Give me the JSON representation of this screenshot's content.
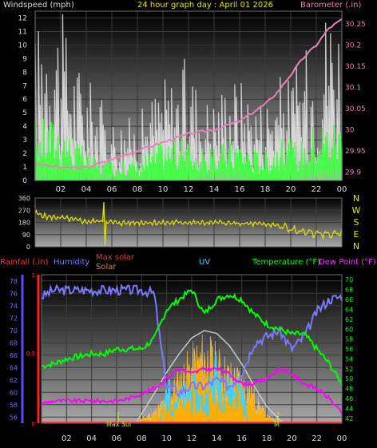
{
  "header": {
    "left": "Windspeed (mph)",
    "center": "24 hour graph day : April 01 2026",
    "right": "Barometer (.in)"
  },
  "colors": {
    "wind_avg": "#3cff3c",
    "wind_gust": "#dcdcdc",
    "barometer": "#e882b8",
    "direction": "#e0e000",
    "rain": "#ff3030",
    "humidity": "#7a7aff",
    "uv": "#40d0ff",
    "temperature": "#00ff00",
    "dewpoint": "#ff00ff",
    "solar": "#ffb000",
    "max_solar": "#d0d0d0",
    "axis_text_blue": "#6f6fff",
    "axis_text_green": "#00ff00"
  },
  "chart_data": [
    {
      "id": "wind-baro",
      "type": "line",
      "ylabel_left": "Windspeed (mph)",
      "ylabel_right": "Barometer (.in)",
      "x_ticks": [
        "02",
        "04",
        "06",
        "08",
        "10",
        "12",
        "14",
        "16",
        "18",
        "20",
        "22",
        "00"
      ],
      "y_left_ticks": [
        "0",
        "1",
        "2",
        "3",
        "4",
        "5",
        "6",
        "7",
        "8",
        "9",
        "10",
        "11",
        "12"
      ],
      "y_right_ticks": [
        "29.9",
        "29.95",
        "30",
        "30.05",
        "30.1",
        "30.15",
        "30.2",
        "30.25"
      ],
      "ylim_left": [
        0,
        12.5
      ],
      "ylim_right": [
        29.88,
        30.28
      ],
      "series": [
        {
          "name": "gust",
          "color": "#dcdcdc",
          "x": [
            0,
            1,
            2,
            3,
            4,
            5,
            6,
            7,
            8,
            9,
            10,
            11,
            12,
            13,
            14,
            15,
            16,
            17,
            18,
            19,
            20,
            21,
            22,
            23,
            24
          ],
          "y": [
            7,
            9,
            8,
            6,
            5,
            4,
            3,
            3,
            3,
            4,
            5,
            5,
            6,
            4,
            4,
            5,
            5,
            4,
            4,
            5,
            5,
            6,
            7,
            9,
            8
          ]
        },
        {
          "name": "average",
          "color": "#3cff3c",
          "x": [
            0,
            1,
            2,
            3,
            4,
            5,
            6,
            7,
            8,
            9,
            10,
            11,
            12,
            13,
            14,
            15,
            16,
            17,
            18,
            19,
            20,
            21,
            22,
            23,
            24
          ],
          "y": [
            3,
            3,
            3,
            2,
            1.5,
            1,
            1,
            1,
            1,
            1.5,
            2,
            2,
            2,
            1.5,
            1.5,
            2,
            2,
            1.5,
            1.5,
            2,
            2,
            2,
            3,
            3,
            3
          ]
        },
        {
          "name": "barometer",
          "color": "#e882b8",
          "x": [
            0,
            2,
            4,
            6,
            8,
            10,
            12,
            14,
            16,
            18,
            19,
            20,
            21,
            22,
            23,
            24
          ],
          "y": [
            29.92,
            29.91,
            29.91,
            29.93,
            29.95,
            29.97,
            29.99,
            30.0,
            30.02,
            30.06,
            30.09,
            30.13,
            30.17,
            30.2,
            30.24,
            30.26
          ]
        }
      ]
    },
    {
      "id": "wind-direction",
      "type": "line",
      "x_ticks": [
        "02",
        "04",
        "06",
        "08",
        "10",
        "12",
        "14",
        "16",
        "18",
        "20",
        "22",
        "00"
      ],
      "y_ticks": [
        "0",
        "90",
        "180",
        "270",
        "360"
      ],
      "compass": [
        "N",
        "W",
        "S",
        "E",
        "N"
      ],
      "ylim": [
        0,
        360
      ],
      "series": [
        {
          "name": "direction",
          "color": "#e0e000",
          "x": [
            0,
            1,
            2,
            3,
            4,
            5,
            6,
            7,
            8,
            9,
            10,
            11,
            12,
            13,
            14,
            15,
            16,
            17,
            18,
            19,
            20,
            21,
            22,
            23,
            24
          ],
          "y": [
            250,
            220,
            215,
            200,
            185,
            190,
            180,
            175,
            180,
            180,
            175,
            180,
            180,
            175,
            180,
            175,
            170,
            170,
            165,
            160,
            125,
            110,
            100,
            90,
            105
          ]
        }
      ]
    },
    {
      "id": "temp-humidity",
      "type": "line",
      "legend_left": [
        "Rainfall (.in)",
        "Humidity"
      ],
      "legend_mid": [
        "Max solar",
        "Solar"
      ],
      "legend_center": "UV",
      "legend_right": [
        "Temperature (°F)",
        "Dew Point (°F)"
      ],
      "x_ticks": [
        "02",
        "04",
        "06",
        "08",
        "10",
        "12",
        "14",
        "16",
        "18",
        "20",
        "22",
        "00"
      ],
      "humidity_ticks": [
        "56",
        "58",
        "60",
        "62",
        "64",
        "66",
        "68",
        "70",
        "72",
        "74",
        "76",
        "78"
      ],
      "temp_ticks": [
        "42",
        "44",
        "46",
        "48",
        "50",
        "52",
        "54",
        "56",
        "58",
        "60",
        "62",
        "64",
        "66",
        "68",
        "70"
      ],
      "rain_ticks": [
        "0",
        "0.5",
        "1"
      ],
      "ylim_humidity": [
        55,
        79
      ],
      "ylim_temp": [
        41,
        71
      ],
      "bottom_annotations": [
        "Max Sol",
        "M"
      ],
      "series": [
        {
          "name": "Humidity",
          "color": "#7a7aff",
          "x": [
            0,
            1,
            2,
            3,
            4,
            5,
            6,
            7,
            8,
            9,
            9.5,
            10,
            11,
            12,
            13,
            14,
            15,
            16,
            17,
            18,
            19,
            20,
            21,
            22,
            23,
            24
          ],
          "y": [
            75.5,
            76.5,
            76.5,
            76.5,
            76.5,
            76.5,
            76.5,
            76.5,
            76.5,
            76,
            68,
            61,
            60,
            61,
            61,
            62,
            61,
            63,
            68,
            69,
            70,
            67,
            69,
            73,
            75,
            75.5
          ]
        },
        {
          "name": "Temperature (°F)",
          "color": "#00ff00",
          "x": [
            0,
            1,
            2,
            3,
            4,
            5,
            6,
            7,
            8,
            9,
            10,
            11,
            12,
            13,
            14,
            15,
            16,
            17,
            18,
            19,
            20,
            21,
            22,
            23,
            24
          ],
          "y": [
            52.5,
            53,
            54,
            54.5,
            55,
            55,
            56,
            56,
            56,
            58,
            64,
            66,
            68,
            63,
            66,
            67,
            66,
            63,
            61,
            60,
            59,
            59,
            56,
            53,
            49
          ]
        },
        {
          "name": "Dew Point (°F)",
          "color": "#ff00ff",
          "x": [
            0,
            1,
            2,
            3,
            4,
            5,
            6,
            7,
            8,
            9,
            10,
            11,
            12,
            13,
            14,
            15,
            16,
            17,
            18,
            19,
            20,
            21,
            22,
            23,
            24
          ],
          "y": [
            45,
            45.5,
            45.5,
            45.5,
            45.5,
            45.5,
            45.5,
            46,
            47,
            48,
            50,
            52,
            51,
            52,
            52,
            51,
            49,
            49,
            50,
            52,
            51,
            49,
            48,
            46,
            43
          ]
        },
        {
          "name": "Max solar",
          "color": "#d0d0d0",
          "x": [
            7.5,
            8,
            9,
            10,
            11,
            12,
            13,
            14,
            15,
            16,
            17,
            18,
            19,
            19.5
          ],
          "y": [
            0,
            0.1,
            0.32,
            0.55,
            0.75,
            0.92,
            1.0,
            0.97,
            0.84,
            0.64,
            0.4,
            0.18,
            0.04,
            0
          ]
        },
        {
          "name": "Solar",
          "color": "#ffb000",
          "x": [
            7.5,
            8,
            9,
            10,
            11,
            12,
            13,
            14,
            15,
            16,
            17,
            18,
            19,
            19.5
          ],
          "y": [
            0,
            0.04,
            0.1,
            0.22,
            0.4,
            0.55,
            0.65,
            0.55,
            0.45,
            0.4,
            0.25,
            0.06,
            0.02,
            0
          ]
        },
        {
          "name": "UV",
          "color": "#40d0ff",
          "x": [
            9.5,
            10,
            11,
            12,
            13,
            14,
            15,
            16,
            16.5
          ],
          "y": [
            0,
            0.28,
            0.2,
            0.3,
            0.18,
            0.45,
            0.3,
            0.32,
            0
          ]
        },
        {
          "name": "Rainfall (.in)",
          "color": "#ff3030",
          "x": [
            0,
            24
          ],
          "y": [
            0,
            0
          ]
        }
      ]
    }
  ]
}
